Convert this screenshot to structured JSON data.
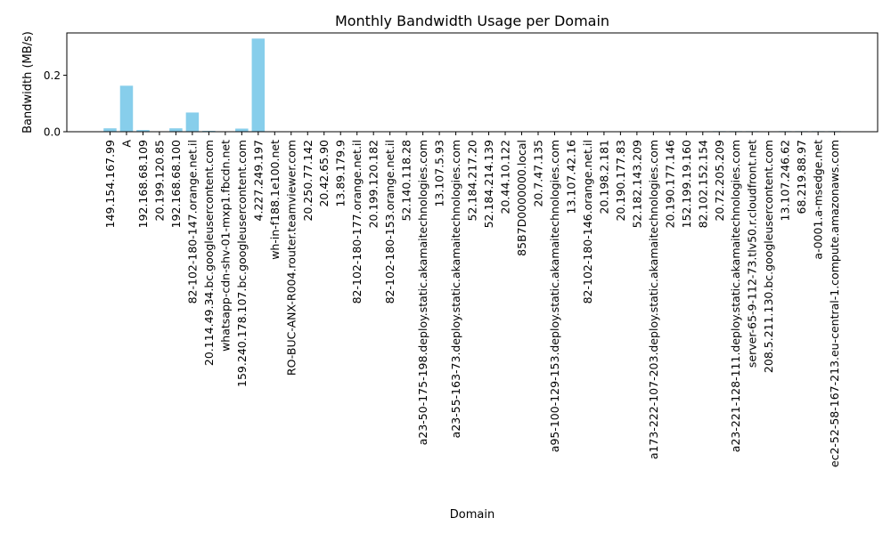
{
  "chart_data": {
    "type": "bar",
    "title": "Monthly Bandwidth Usage per Domain",
    "xlabel": "Domain",
    "ylabel": "Bandwidth (MB/s)",
    "ylim": [
      0,
      0.35
    ],
    "yticks": [
      0.0,
      0.2
    ],
    "ytick_labels": [
      "0.0",
      "0.2"
    ],
    "bar_color": "#87CEEB",
    "grid": false,
    "categories": [
      "149.154.167.99",
      "A",
      "192.168.68.109",
      "20.199.120.85",
      "192.168.68.100",
      "82-102-180-147.orange.net.il",
      "20.114.49.34.bc.googleusercontent.com",
      "whatsapp-cdn-shv-01-mxp1.fbcdn.net",
      "159.240.178.107.bc.googleusercontent.com",
      "4.227.249.197",
      "wh-in-f188.1e100.net",
      "RO-BUC-ANX-R004.router.teamviewer.com",
      "20.250.77.142",
      "20.42.65.90",
      "13.89.179.9",
      "82-102-180-177.orange.net.il",
      "20.199.120.182",
      "82-102-180-153.orange.net.il",
      "52.140.118.28",
      "a23-50-175-198.deploy.static.akamaitechnologies.com",
      "13.107.5.93",
      "a23-55-163-73.deploy.static.akamaitechnologies.com",
      "52.184.217.20",
      "52.184.214.139",
      "20.44.10.122",
      "85B7D0000000.local",
      "20.7.47.135",
      "a95-100-129-153.deploy.static.akamaitechnologies.com",
      "13.107.42.16",
      "82-102-180-146.orange.net.il",
      "20.198.2.181",
      "20.190.177.83",
      "52.182.143.209",
      "a173-222-107-203.deploy.static.akamaitechnologies.com",
      "20.190.177.146",
      "152.199.19.160",
      "82.102.152.154",
      "20.72.205.209",
      "a23-221-128-111.deploy.static.akamaitechnologies.com",
      "server-65-9-112-73.tlv50.r.cloudfront.net",
      "208.5.211.130.bc.googleusercontent.com",
      "13.107.246.62",
      "68.219.88.97",
      "a-0001.a-msedge.net",
      "ec2-52-58-167-213.eu-central-1.compute.amazonaws.com"
    ],
    "values": [
      0.012,
      0.163,
      0.006,
      0.001,
      0.012,
      0.068,
      0.003,
      0.001,
      0.011,
      0.33,
      0.0005,
      0.001,
      0.0005,
      0.0005,
      0.0005,
      0.0005,
      0.0005,
      0.0005,
      0.0005,
      0.0005,
      0.0005,
      0.0005,
      0.0005,
      0.0005,
      0.0005,
      0.0005,
      0.0005,
      0.0005,
      0.0005,
      0.0005,
      0.0005,
      0.0005,
      0.0005,
      0.0005,
      0.0005,
      0.0005,
      0.0005,
      0.002,
      0.002,
      0.002,
      0.001,
      0.002,
      0.002,
      0.002,
      0.002
    ]
  }
}
